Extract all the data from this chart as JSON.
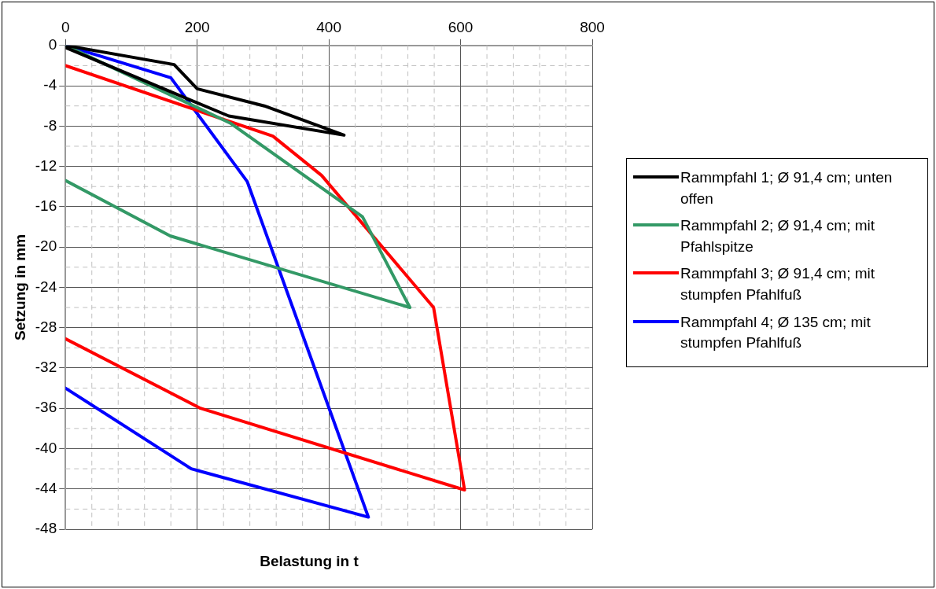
{
  "chart_data": {
    "type": "line",
    "xlabel": "Belastung in t",
    "ylabel": "Setzung in mm",
    "xlim": [
      0,
      800
    ],
    "xticks": [
      0,
      200,
      400,
      600,
      800
    ],
    "ylim": [
      -48,
      0
    ],
    "yticks": [
      0,
      -4,
      -8,
      -12,
      -16,
      -20,
      -24,
      -28,
      -32,
      -36,
      -40,
      -44,
      -48
    ],
    "grid": true,
    "legend": "right",
    "marker": "none",
    "line_style": "solid",
    "series": [
      {
        "name": "Rammpfahl 1; Ø 91,4 cm; unten offen",
        "color": "#000000",
        "x": [
          0,
          165,
          200,
          302,
          423,
          248,
          193,
          0
        ],
        "values": [
          0,
          -1.9,
          -4.3,
          -6.0,
          -8.9,
          -7.0,
          -5.5,
          -0.2
        ]
      },
      {
        "name": "Rammpfahl 2; Ø 91,4 cm; mit Pfahlspitze",
        "color": "#339966",
        "x": [
          0,
          250,
          451,
          523,
          159,
          0
        ],
        "values": [
          0,
          -7.7,
          -17.0,
          -26.0,
          -18.9,
          -13.4
        ]
      },
      {
        "name": "Rammpfahl 3; Ø 91,4 cm; mit stumpfen Pfahlfuß",
        "color": "#ff0000",
        "x": [
          0,
          315,
          389,
          559,
          606,
          205,
          0
        ],
        "values": [
          -2,
          -9.0,
          -12.9,
          -26.0,
          -44.1,
          -36.0,
          -29.1
        ]
      },
      {
        "name": "Rammpfahl 4; Ø 135 cm; mit stumpfen Pfahlfuß",
        "color": "#0000ff",
        "x": [
          0,
          160,
          276,
          460,
          191,
          0
        ],
        "values": [
          0,
          -3.2,
          -13.5,
          -46.8,
          -42.0,
          -34.0
        ]
      }
    ]
  }
}
